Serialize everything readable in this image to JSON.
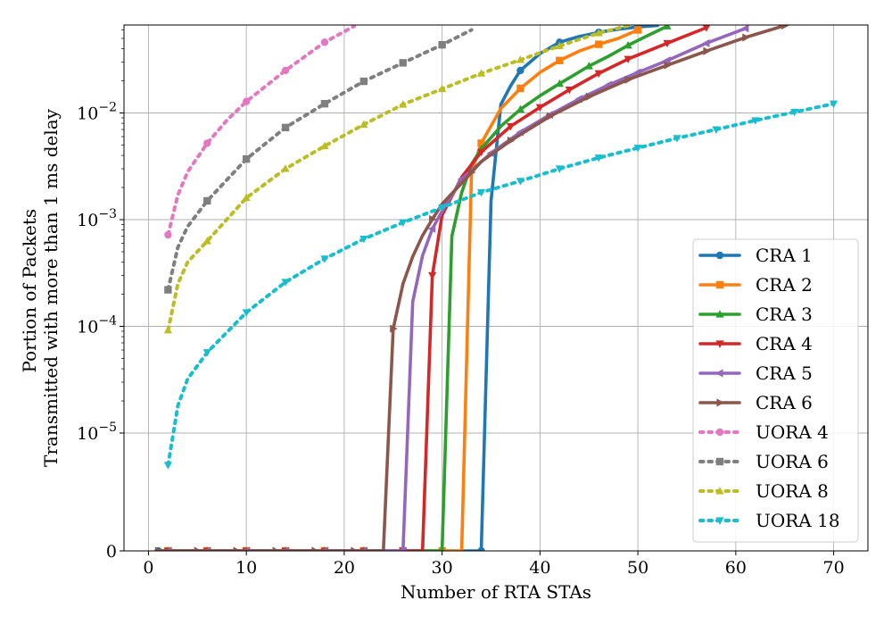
{
  "chart_data": {
    "type": "line",
    "xlabel": "Number of RTA STAs",
    "ylabel": [
      "Portion of Packets",
      "Transmitted with more than 1 ms delay"
    ],
    "xlim": [
      -2.5,
      73.5
    ],
    "x_ticks": [
      0,
      10,
      20,
      30,
      40,
      50,
      60,
      70
    ],
    "y_scale": "symlog",
    "y_ticks": [
      {
        "value": 0,
        "base": "0",
        "exp": ""
      },
      {
        "value": 1e-05,
        "base": "10",
        "exp": "−5"
      },
      {
        "value": 0.0001,
        "base": "10",
        "exp": "−4"
      },
      {
        "value": 0.001,
        "base": "10",
        "exp": "−3"
      },
      {
        "value": 0.01,
        "base": "10",
        "exp": "−2"
      }
    ],
    "grid": true,
    "legend_position": "lower-right",
    "series": [
      {
        "name": "CRA 1",
        "color": "#1f77b4",
        "style": "solid",
        "marker": "circle",
        "x": [
          1,
          2,
          4,
          6,
          8,
          10,
          12,
          14,
          16,
          18,
          20,
          22,
          24,
          26,
          28,
          30,
          32,
          34,
          35,
          36,
          37,
          38,
          40,
          42,
          44,
          46,
          48,
          50,
          52
        ],
        "y": [
          0,
          0,
          0,
          0,
          0,
          0,
          0,
          0,
          0,
          0,
          0,
          0,
          0,
          0,
          0,
          0,
          0,
          0,
          0.0015,
          0.012,
          0.018,
          0.025,
          0.036,
          0.046,
          0.052,
          0.057,
          0.061,
          0.064,
          0.066
        ],
        "marker_x": [
          1,
          2,
          6,
          10,
          14,
          18,
          22,
          26,
          30,
          34,
          38,
          42,
          46,
          50
        ]
      },
      {
        "name": "CRA 2",
        "color": "#ff7f0e",
        "style": "solid",
        "marker": "square",
        "x": [
          1,
          2,
          4,
          6,
          8,
          10,
          12,
          14,
          16,
          18,
          20,
          22,
          24,
          26,
          28,
          30,
          32,
          33,
          34,
          36,
          38,
          40,
          42,
          44,
          46,
          48,
          50
        ],
        "y": [
          0,
          0,
          0,
          0,
          0,
          0,
          0,
          0,
          0,
          0,
          0,
          0,
          0,
          0,
          0,
          0,
          0,
          0.0028,
          0.0052,
          0.011,
          0.017,
          0.024,
          0.031,
          0.038,
          0.044,
          0.05,
          0.06
        ],
        "marker_x": [
          2,
          6,
          10,
          14,
          18,
          22,
          26,
          30,
          34,
          38,
          42,
          46,
          50
        ]
      },
      {
        "name": "CRA 3",
        "color": "#2ca02c",
        "style": "solid",
        "marker": "triangle-up",
        "x": [
          1,
          2,
          4,
          6,
          8,
          10,
          12,
          14,
          16,
          18,
          20,
          22,
          24,
          26,
          28,
          30,
          31,
          32,
          33,
          34,
          36,
          38,
          40,
          42,
          45,
          47,
          49,
          51,
          53
        ],
        "y": [
          0,
          0,
          0,
          0,
          0,
          0,
          0,
          0,
          0,
          0,
          0,
          0,
          0,
          0,
          0,
          0,
          0.0007,
          0.0018,
          0.0033,
          0.0046,
          0.0075,
          0.0108,
          0.0145,
          0.0188,
          0.0275,
          0.034,
          0.043,
          0.053,
          0.065
        ],
        "marker_x": [
          2,
          6,
          10,
          14,
          18,
          22,
          26,
          30,
          34,
          38,
          42,
          45,
          49,
          53
        ]
      },
      {
        "name": "CRA 4",
        "color": "#d62728",
        "style": "solid",
        "marker": "triangle-down",
        "x": [
          1,
          2,
          4,
          6,
          8,
          10,
          12,
          14,
          16,
          18,
          20,
          22,
          24,
          26,
          28,
          29,
          30,
          32,
          34,
          37,
          40,
          43,
          46,
          49,
          53,
          57
        ],
        "y": [
          0,
          0,
          0,
          0,
          0,
          0,
          0,
          0,
          0,
          0,
          0,
          0,
          0,
          0,
          0,
          0.0003,
          0.0011,
          0.0025,
          0.0043,
          0.0075,
          0.0113,
          0.0165,
          0.0235,
          0.032,
          0.045,
          0.063
        ],
        "marker_x": [
          2,
          6,
          10,
          14,
          18,
          22,
          26,
          29,
          34,
          37,
          40,
          43,
          46,
          49,
          53,
          57
        ]
      },
      {
        "name": "CRA 5",
        "color": "#9467bd",
        "style": "solid",
        "marker": "triangle-left",
        "x": [
          1,
          2,
          4,
          6,
          8,
          10,
          12,
          14,
          16,
          18,
          20,
          22,
          24,
          26,
          27,
          28,
          29,
          30,
          32,
          35,
          38,
          41,
          44,
          47,
          50,
          53,
          57,
          61
        ],
        "y": [
          0,
          0,
          0,
          0,
          0,
          0,
          0,
          0,
          0,
          0,
          0,
          0,
          0,
          0,
          0.00017,
          0.00046,
          0.00082,
          0.0012,
          0.0024,
          0.0042,
          0.0066,
          0.0096,
          0.0135,
          0.0183,
          0.024,
          0.031,
          0.045,
          0.062
        ],
        "marker_x": [
          2,
          6,
          10,
          14,
          18,
          22,
          26,
          29,
          32,
          35,
          38,
          41,
          44,
          47,
          50,
          53,
          57,
          61
        ]
      },
      {
        "name": "CRA 6",
        "color": "#8c564b",
        "style": "solid",
        "marker": "triangle-right",
        "x": [
          1,
          2,
          4,
          6,
          8,
          10,
          12,
          14,
          16,
          18,
          20,
          22,
          24,
          25,
          26,
          27,
          28,
          29,
          30,
          32,
          34,
          37,
          41,
          45,
          49,
          53,
          57,
          61,
          65
        ],
        "y": [
          0,
          0,
          0,
          0,
          0,
          0,
          0,
          0,
          0,
          0,
          0,
          0,
          0,
          9.5e-05,
          0.00025,
          0.00045,
          0.00071,
          0.00101,
          0.0014,
          0.0022,
          0.0035,
          0.0055,
          0.0093,
          0.0142,
          0.0205,
          0.028,
          0.038,
          0.051,
          0.066
        ],
        "marker_x": [
          1,
          5,
          9,
          13,
          17,
          21,
          25,
          29,
          33,
          37,
          41,
          45,
          49,
          53,
          57,
          61,
          65
        ]
      },
      {
        "name": "UORA 4",
        "color": "#e377c2",
        "style": "dotted",
        "marker": "circle",
        "x": [
          2,
          3,
          4,
          6,
          8,
          10,
          14,
          18,
          21
        ],
        "y": [
          0.00072,
          0.0017,
          0.0028,
          0.0052,
          0.0085,
          0.0128,
          0.025,
          0.046,
          0.065
        ],
        "marker_x": [
          2,
          6,
          10,
          14,
          18
        ]
      },
      {
        "name": "UORA 6",
        "color": "#7f7f7f",
        "style": "dotted",
        "marker": "square",
        "x": [
          2,
          3,
          4,
          6,
          10,
          14,
          18,
          22,
          26,
          30,
          33
        ],
        "y": [
          0.00022,
          0.00055,
          0.00086,
          0.0015,
          0.0037,
          0.0073,
          0.0122,
          0.0198,
          0.0295,
          0.0435,
          0.06
        ],
        "marker_x": [
          2,
          6,
          10,
          14,
          18,
          22,
          26,
          30
        ]
      },
      {
        "name": "UORA 8",
        "color": "#bcbd22",
        "style": "dotted",
        "marker": "triangle-up",
        "x": [
          2,
          3,
          4,
          6,
          10,
          14,
          18,
          22,
          26,
          30,
          34,
          38,
          42,
          46,
          49
        ],
        "y": [
          9.2e-05,
          0.00025,
          0.0004,
          0.00063,
          0.0016,
          0.003,
          0.0049,
          0.0078,
          0.012,
          0.0168,
          0.0235,
          0.0315,
          0.0425,
          0.056,
          0.066
        ],
        "marker_x": [
          2,
          6,
          10,
          14,
          18,
          22,
          26,
          30,
          34,
          38,
          42,
          46
        ]
      },
      {
        "name": "UORA 18",
        "color": "#17becf",
        "style": "dotted",
        "marker": "triangle-down",
        "x": [
          2,
          3,
          4,
          6,
          10,
          14,
          18,
          22,
          26,
          30,
          34,
          38,
          42,
          46,
          50,
          54,
          58,
          62,
          66,
          70
        ],
        "y": [
          5e-06,
          1.8e-05,
          3.2e-05,
          5.7e-05,
          0.000135,
          0.00026,
          0.00043,
          0.00066,
          0.00094,
          0.0013,
          0.0018,
          0.0023,
          0.003,
          0.0038,
          0.0047,
          0.0058,
          0.007,
          0.0085,
          0.0102,
          0.0122
        ],
        "marker_x": [
          2,
          6,
          10,
          14,
          18,
          22,
          26,
          30,
          34,
          38,
          42,
          46,
          50,
          54,
          58,
          62,
          66,
          70
        ]
      }
    ]
  }
}
